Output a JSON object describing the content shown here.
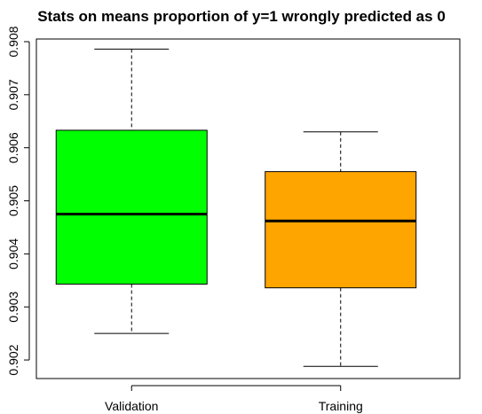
{
  "chart_data": {
    "type": "box",
    "title": "Stats on means proportion of y=1 wrongly predicted as 0",
    "xlabel": "",
    "ylabel": "",
    "ylim": [
      0.90165,
      0.90805
    ],
    "y_ticks": [
      "0.902",
      "0.903",
      "0.904",
      "0.905",
      "0.906",
      "0.907",
      "0.908"
    ],
    "y_tick_values": [
      0.902,
      0.903,
      0.904,
      0.905,
      0.906,
      0.907,
      0.908
    ],
    "categories": [
      "Validation",
      "Training"
    ],
    "boxes": [
      {
        "category": "Validation",
        "min": 0.9025,
        "q1": 0.90343,
        "median": 0.90475,
        "q3": 0.90633,
        "max": 0.90786,
        "color": "#00ff00"
      },
      {
        "category": "Training",
        "min": 0.90188,
        "q1": 0.90336,
        "median": 0.90462,
        "q3": 0.90555,
        "max": 0.9063,
        "color": "#ffa500"
      }
    ],
    "grid": false
  }
}
